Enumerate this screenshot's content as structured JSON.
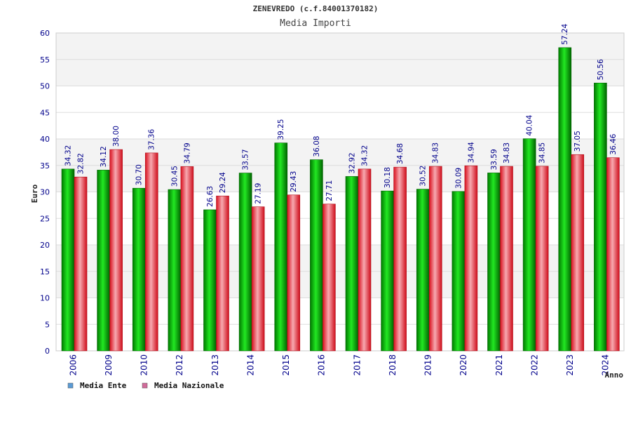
{
  "chart_data": {
    "type": "bar",
    "title": "ZENEVREDO (c.f.84001370182)",
    "subtitle": "Media Importi",
    "xlabel": "Anno",
    "ylabel": "Euro",
    "ylim": [
      0,
      60
    ],
    "ytick_step": 5,
    "ytick_labels": [
      "0",
      "5",
      "10",
      "15",
      "20",
      "25",
      "30",
      "35",
      "40",
      "45",
      "50",
      "55",
      "60"
    ],
    "categories": [
      "2006",
      "2009",
      "2010",
      "2012",
      "2013",
      "2014",
      "2015",
      "2016",
      "2017",
      "2018",
      "2019",
      "2020",
      "2021",
      "2022",
      "2023",
      "2024"
    ],
    "series": [
      {
        "name": "Media Ente",
        "color": "#00bb00",
        "legend_color": "#5b9bd5",
        "values": [
          34.32,
          34.12,
          30.7,
          30.45,
          26.63,
          33.57,
          39.25,
          36.08,
          32.92,
          30.18,
          30.52,
          30.09,
          33.59,
          40.04,
          57.24,
          50.56
        ],
        "labels": [
          "34.32",
          "34.12",
          "30.70",
          "30.45",
          "26.63",
          "33.57",
          "39.25",
          "36.08",
          "32.92",
          "30.18",
          "30.52",
          "30.09",
          "33.59",
          "40.04",
          "57.24",
          "50.56"
        ]
      },
      {
        "name": "Media Nazionale",
        "color": "#e8313f",
        "legend_color": "#d16b9a",
        "values": [
          32.82,
          38.0,
          37.36,
          34.79,
          29.24,
          27.19,
          29.43,
          27.71,
          34.32,
          34.68,
          34.83,
          34.94,
          34.83,
          34.85,
          37.05,
          36.46
        ],
        "labels": [
          "32.82",
          "38.00",
          "37.36",
          "34.79",
          "29.24",
          "27.19",
          "29.43",
          "27.71",
          "34.32",
          "34.68",
          "34.83",
          "34.94",
          "34.83",
          "34.85",
          "37.05",
          "36.46"
        ]
      }
    ],
    "grid": true,
    "legend_position": "bottom-left"
  }
}
